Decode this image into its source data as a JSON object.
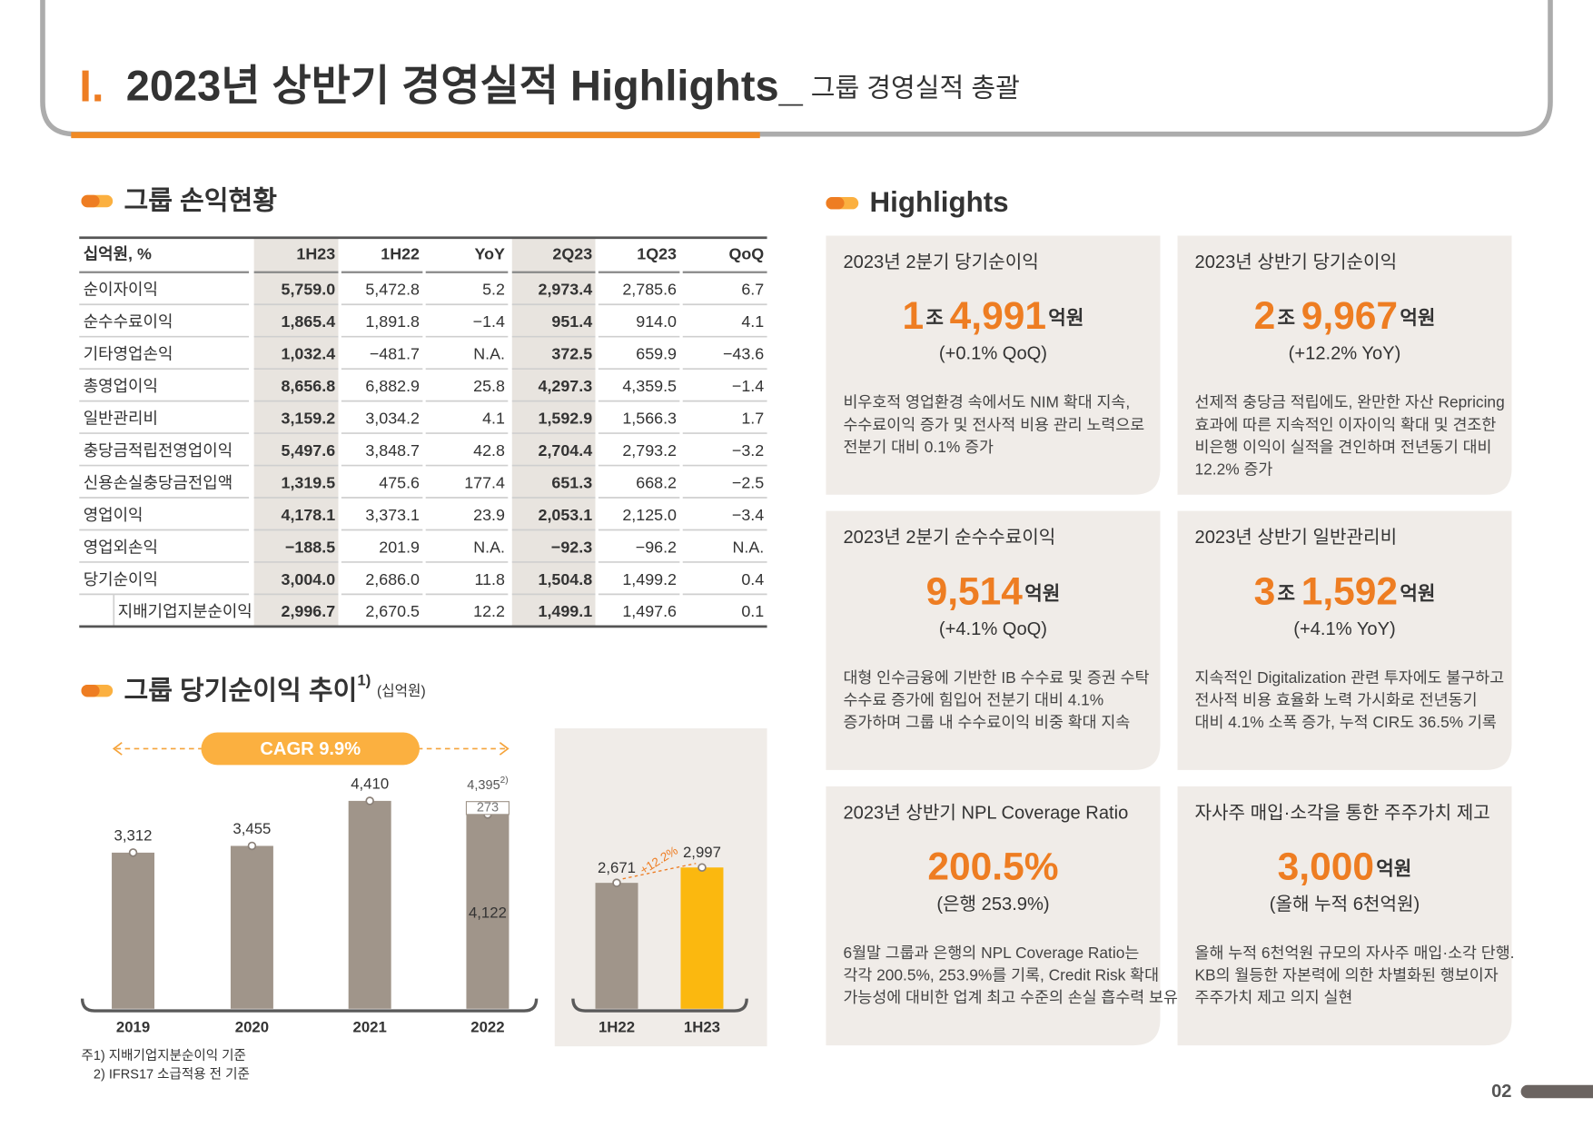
{
  "header": {
    "number": "I.",
    "title": "2023년 상반기 경영실적 Highlights_",
    "subtitle": "그룹 경영실적 총괄"
  },
  "table": {
    "title": "그룹 손익현황",
    "columns": [
      "십억원, %",
      "1H23",
      "1H22",
      "YoY",
      "2Q23",
      "1Q23",
      "QoQ"
    ],
    "highlight_columns": [
      1,
      4
    ],
    "indented_rows": [
      10
    ],
    "rows": [
      [
        "순이자이익",
        "5,759.0",
        "5,472.8",
        "5.2",
        "2,973.4",
        "2,785.6",
        "6.7"
      ],
      [
        "순수수료이익",
        "1,865.4",
        "1,891.8",
        "−1.4",
        "951.4",
        "914.0",
        "4.1"
      ],
      [
        "기타영업손익",
        "1,032.4",
        "−481.7",
        "N.A.",
        "372.5",
        "659.9",
        "−43.6"
      ],
      [
        "총영업이익",
        "8,656.8",
        "6,882.9",
        "25.8",
        "4,297.3",
        "4,359.5",
        "−1.4"
      ],
      [
        "일반관리비",
        "3,159.2",
        "3,034.2",
        "4.1",
        "1,592.9",
        "1,566.3",
        "1.7"
      ],
      [
        "충당금적립전영업이익",
        "5,497.6",
        "3,848.7",
        "42.8",
        "2,704.4",
        "2,793.2",
        "−3.2"
      ],
      [
        "신용손실충당금전입액",
        "1,319.5",
        "475.6",
        "177.4",
        "651.3",
        "668.2",
        "−2.5"
      ],
      [
        "영업이익",
        "4,178.1",
        "3,373.1",
        "23.9",
        "2,053.1",
        "2,125.0",
        "−3.4"
      ],
      [
        "영업외손익",
        "−188.5",
        "201.9",
        "N.A.",
        "−92.3",
        "−96.2",
        "N.A."
      ],
      [
        "당기순이익",
        "3,004.0",
        "2,686.0",
        "11.8",
        "1,504.8",
        "1,499.2",
        "0.4"
      ],
      [
        "지배기업지분순이익",
        "2,996.7",
        "2,670.5",
        "12.2",
        "1,499.1",
        "1,497.6",
        "0.1"
      ]
    ]
  },
  "chart_data": [
    {
      "type": "bar",
      "title": "그룹 당기순이익 추이",
      "title_note": "1)",
      "unit": "(십억원)",
      "annotation": "CAGR 9.9%",
      "total_label": "4,395",
      "total_note": "2)",
      "categories": [
        "2019",
        "2020",
        "2021",
        "2022"
      ],
      "ylim": [
        0,
        5000
      ],
      "series": [
        {
          "color": "#a0958a",
          "values": [
            3312,
            3455,
            4410,
            4122
          ],
          "value_labels": [
            "3,312",
            "3,455",
            "4,410",
            "4,122"
          ]
        },
        {
          "color": "#ffffff",
          "values": [
            null,
            null,
            null,
            273
          ],
          "value_labels": [
            null,
            null,
            null,
            "273"
          ]
        }
      ]
    },
    {
      "type": "bar",
      "annotation": "+12.2%",
      "categories": [
        "1H22",
        "1H23"
      ],
      "ylim": [
        0,
        5000
      ],
      "colors": [
        "#a0958a",
        "#fbb80f"
      ],
      "values": [
        2671,
        2997
      ],
      "value_labels": [
        "2,671",
        "2,997"
      ]
    }
  ],
  "footnotes": [
    "주1) 지배기업지분순이익 기준",
    "2) IFRS17 소급적용 전 기준"
  ],
  "highlights": {
    "title": "Highlights",
    "cards": [
      {
        "title": "2023년 2분기 당기순이익",
        "main": [
          {
            "text": "1",
            "emphasis": true
          },
          {
            "text": "조",
            "emphasis": false
          },
          {
            "text": "4,991",
            "emphasis": true
          },
          {
            "text": "억원",
            "emphasis": false
          }
        ],
        "sub": "(+0.1% QoQ)",
        "body": [
          "비우호적 영업환경 속에서도 NIM 확대 지속,",
          "수수료이익 증가 및 전사적 비용 관리 노력으로",
          "전분기 대비 0.1% 증가"
        ]
      },
      {
        "title": "2023년 상반기 당기순이익",
        "main": [
          {
            "text": "2",
            "emphasis": true
          },
          {
            "text": "조",
            "emphasis": false
          },
          {
            "text": "9,967",
            "emphasis": true
          },
          {
            "text": "억원",
            "emphasis": false
          }
        ],
        "sub": "(+12.2% YoY)",
        "body": [
          "선제적 충당금 적립에도, 완만한 자산 Repricing",
          "효과에 따른 지속적인 이자이익 확대 및 견조한",
          "비은행 이익이 실적을 견인하며 전년동기 대비",
          "12.2% 증가"
        ]
      },
      {
        "title": "2023년 2분기 순수수료이익",
        "main": [
          {
            "text": "9,514",
            "emphasis": true
          },
          {
            "text": "억원",
            "emphasis": false
          }
        ],
        "sub": "(+4.1% QoQ)",
        "body": [
          "대형 인수금융에 기반한 IB 수수료 및 증권 수탁",
          "수수료 증가에 힘입어 전분기 대비 4.1%",
          "증가하며 그룹 내 수수료이익 비중 확대 지속"
        ]
      },
      {
        "title": "2023년 상반기 일반관리비",
        "main": [
          {
            "text": "3",
            "emphasis": true
          },
          {
            "text": "조",
            "emphasis": false
          },
          {
            "text": "1,592",
            "emphasis": true
          },
          {
            "text": "억원",
            "emphasis": false
          }
        ],
        "sub": "(+4.1% YoY)",
        "body": [
          "지속적인 Digitalization 관련 투자에도 불구하고",
          "전사적 비용 효율화 노력 가시화로 전년동기",
          "대비 4.1% 소폭 증가, 누적 CIR도 36.5% 기록"
        ]
      },
      {
        "title": "2023년 상반기 NPL Coverage Ratio",
        "main": [
          {
            "text": "200.5%",
            "emphasis": true
          }
        ],
        "sub": "(은행 253.9%)",
        "body": [
          "6월말 그룹과 은행의 NPL Coverage Ratio는",
          "각각 200.5%, 253.9%를 기록, Credit Risk 확대",
          "가능성에 대비한 업계 최고 수준의 손실 흡수력 보유"
        ]
      },
      {
        "title": "자사주 매입·소각을 통한 주주가치 제고",
        "main": [
          {
            "text": "3,000",
            "emphasis": true
          },
          {
            "text": "억원",
            "emphasis": false
          }
        ],
        "sub": "(올해 누적 6천억원)",
        "body": [
          "올해 누적 6천억원 규모의 자사주 매입·소각 단행.",
          "KB의 월등한 자본력에 의한 차별화된 행보이자",
          "주주가치 제고 의지 실현"
        ]
      }
    ]
  },
  "page_number": "02"
}
